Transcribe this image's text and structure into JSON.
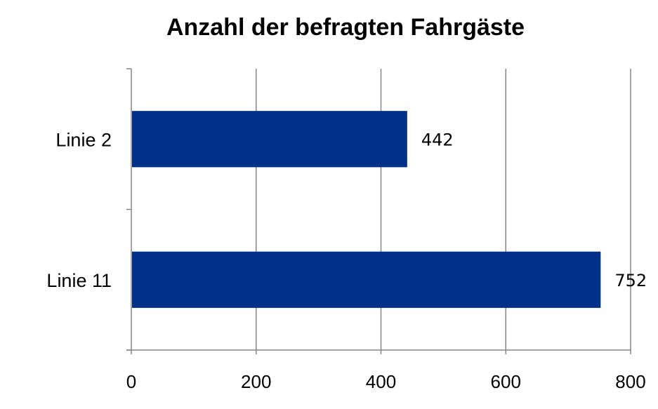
{
  "chart_data": {
    "type": "bar",
    "orientation": "horizontal",
    "title": "Anzahl der befragten Fahrgäste",
    "categories": [
      "Linie 2",
      "Linie 11"
    ],
    "values": [
      442,
      752
    ],
    "data_labels": [
      "442",
      "752"
    ],
    "xlim": [
      0,
      800
    ],
    "x_ticks": [
      0,
      200,
      400,
      600,
      800
    ],
    "x_tick_labels": [
      "0",
      "200",
      "400",
      "600",
      "800"
    ],
    "xlabel": "",
    "ylabel": "",
    "grid": "vertical",
    "legend": "none",
    "bar_color": "#003087",
    "grid_color": "#868686"
  }
}
